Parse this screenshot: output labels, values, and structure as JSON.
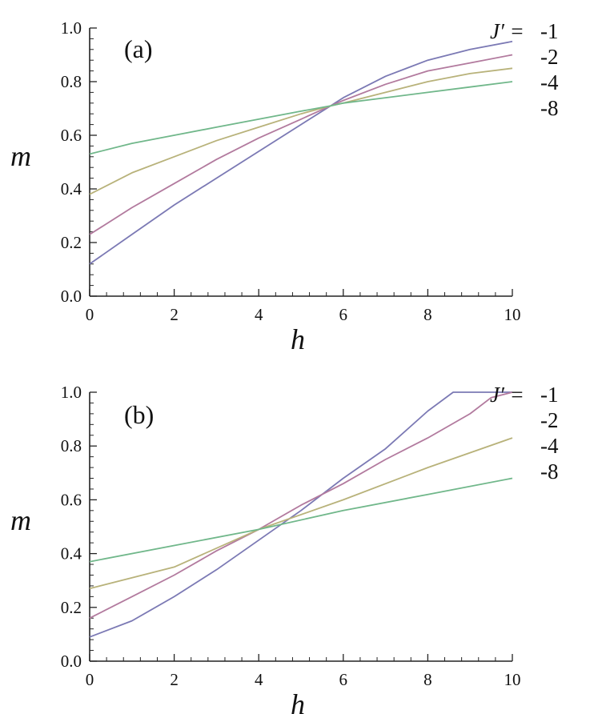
{
  "chart_data": [
    {
      "type": "line",
      "panel_label": "(a)",
      "xlabel": "h",
      "ylabel": "m",
      "xlim": [
        0,
        10
      ],
      "ylim": [
        0,
        1
      ],
      "xticks": [
        "0",
        "2",
        "4",
        "6",
        "8",
        "10"
      ],
      "yticks": [
        "0.0",
        "0.2",
        "0.4",
        "0.6",
        "0.8",
        "1.0"
      ],
      "legend_title": "J′ =",
      "legend_placement": "right",
      "grid": false,
      "x": [
        0,
        1,
        2,
        3,
        4,
        5,
        5.7,
        6,
        7,
        8,
        9,
        10
      ],
      "series": [
        {
          "name": "-1",
          "color": "#7b79b4",
          "values": [
            0.12,
            0.23,
            0.34,
            0.44,
            0.54,
            0.64,
            0.71,
            0.74,
            0.82,
            0.88,
            0.92,
            0.95
          ]
        },
        {
          "name": "-2",
          "color": "#b27a9e",
          "values": [
            0.23,
            0.33,
            0.42,
            0.51,
            0.59,
            0.66,
            0.71,
            0.73,
            0.79,
            0.84,
            0.87,
            0.9
          ]
        },
        {
          "name": "-4",
          "color": "#b8b27a",
          "values": [
            0.38,
            0.46,
            0.52,
            0.58,
            0.63,
            0.68,
            0.71,
            0.72,
            0.76,
            0.8,
            0.83,
            0.85
          ]
        },
        {
          "name": "-8",
          "color": "#70b78a",
          "values": [
            0.53,
            0.57,
            0.6,
            0.63,
            0.66,
            0.69,
            0.71,
            0.72,
            0.74,
            0.76,
            0.78,
            0.8
          ]
        }
      ]
    },
    {
      "type": "line",
      "panel_label": "(b)",
      "xlabel": "h",
      "ylabel": "m",
      "xlim": [
        0,
        10
      ],
      "ylim": [
        0,
        1
      ],
      "xticks": [
        "0",
        "2",
        "4",
        "6",
        "8",
        "10"
      ],
      "yticks": [
        "0.0",
        "0.2",
        "0.4",
        "0.6",
        "0.8",
        "1.0"
      ],
      "legend_title": "J′ =",
      "legend_placement": "right",
      "grid": false,
      "series": [
        {
          "name": "-1",
          "color": "#7b79b4",
          "x": [
            0,
            1,
            2,
            3,
            4,
            5,
            6,
            7,
            8,
            8.6,
            9,
            10
          ],
          "values": [
            0.09,
            0.15,
            0.24,
            0.34,
            0.45,
            0.56,
            0.68,
            0.79,
            0.93,
            1.0,
            1.0,
            1.0
          ]
        },
        {
          "name": "-2",
          "color": "#b27a9e",
          "x": [
            0,
            1,
            2,
            3,
            4,
            5,
            6,
            7,
            8,
            9,
            9.5,
            10
          ],
          "values": [
            0.16,
            0.24,
            0.32,
            0.41,
            0.49,
            0.58,
            0.66,
            0.75,
            0.83,
            0.92,
            0.98,
            1.0
          ]
        },
        {
          "name": "-4",
          "color": "#b8b27a",
          "x": [
            0,
            2,
            4,
            6,
            8,
            10
          ],
          "values": [
            0.27,
            0.35,
            0.49,
            0.6,
            0.72,
            0.83
          ]
        },
        {
          "name": "-8",
          "color": "#70b78a",
          "x": [
            0,
            2,
            4,
            6,
            8,
            10
          ],
          "values": [
            0.37,
            0.43,
            0.49,
            0.56,
            0.62,
            0.68
          ]
        }
      ]
    }
  ]
}
